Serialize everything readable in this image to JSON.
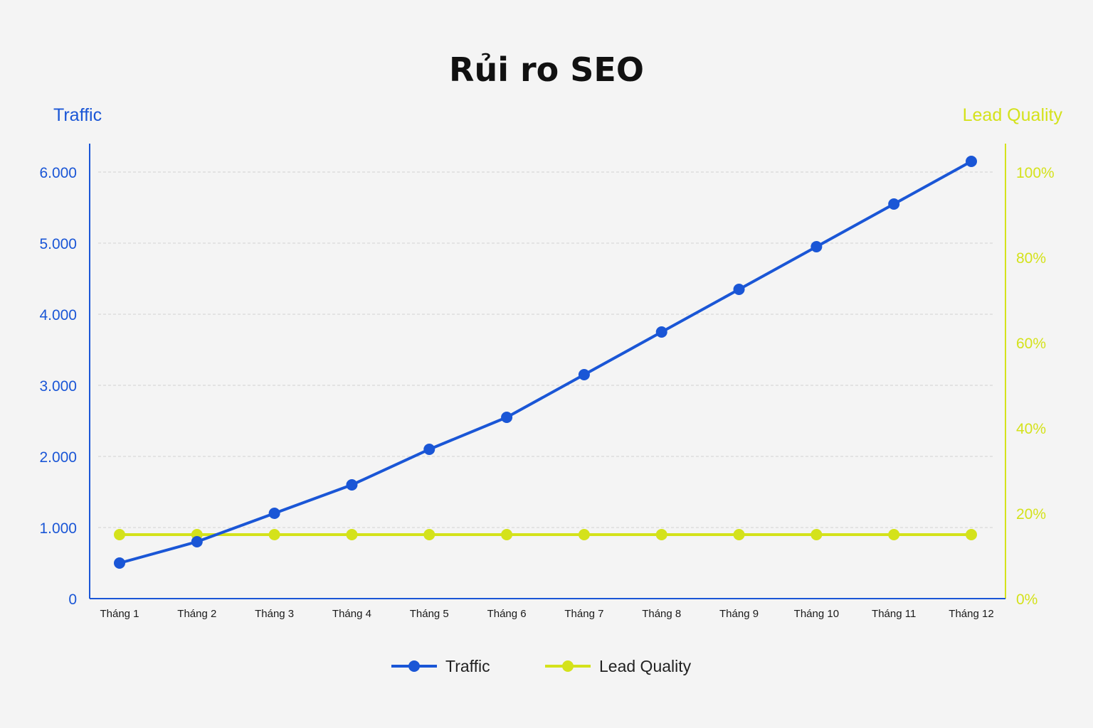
{
  "chart_data": {
    "type": "line",
    "title": "Rủi ro SEO",
    "categories": [
      "Tháng 1",
      "Tháng 2",
      "Tháng 3",
      "Tháng 4",
      "Tháng 5",
      "Tháng 6",
      "Tháng 7",
      "Tháng 8",
      "Tháng 9",
      "Tháng 10",
      "Tháng 11",
      "Tháng 12"
    ],
    "y_left": {
      "label": "Traffic",
      "range": [
        0,
        6000
      ],
      "ticks": [
        {
          "value": 0,
          "label": "0"
        },
        {
          "value": 1000,
          "label": "1.000"
        },
        {
          "value": 2000,
          "label": "2.000"
        },
        {
          "value": 3000,
          "label": "3.000"
        },
        {
          "value": 4000,
          "label": "4.000"
        },
        {
          "value": 5000,
          "label": "5.000"
        },
        {
          "value": 6000,
          "label": "6.000"
        }
      ]
    },
    "y_right": {
      "label": "Lead Quality",
      "range": [
        0,
        100
      ],
      "unit": "%",
      "ticks": [
        {
          "value": 0,
          "label": "0%"
        },
        {
          "value": 20,
          "label": "20%"
        },
        {
          "value": 40,
          "label": "40%"
        },
        {
          "value": 60,
          "label": "60%"
        },
        {
          "value": 80,
          "label": "80%"
        },
        {
          "value": 100,
          "label": "100%"
        }
      ]
    },
    "series": [
      {
        "name": "Traffic",
        "axis": "left",
        "color": "#1a56d6",
        "values": [
          500,
          800,
          1200,
          1600,
          2100,
          2550,
          3150,
          3750,
          4350,
          4950,
          5550,
          6150
        ]
      },
      {
        "name": "Lead Quality",
        "axis": "right",
        "color": "#d4e21b",
        "values": [
          15,
          15,
          15,
          15,
          15,
          15,
          15,
          15,
          15,
          15,
          15,
          15
        ]
      }
    ],
    "grid": true,
    "legend": "bottom-center"
  }
}
